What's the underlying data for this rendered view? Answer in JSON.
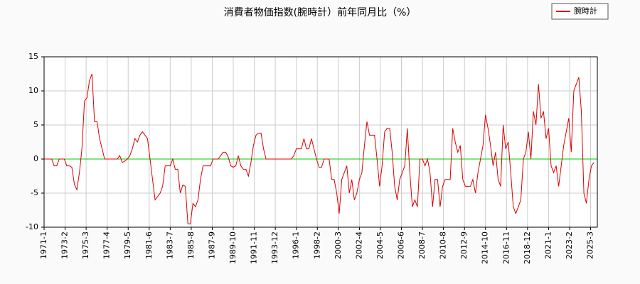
{
  "chart_data": {
    "type": "line",
    "title": "消費者物価指数(腕時計）前年同月比（%）",
    "xlim": [
      "1971-1",
      "2025-11"
    ],
    "xticks": [
      "1971-1",
      "1973-2",
      "1975-3",
      "1977-4",
      "1979-5",
      "1981-6",
      "1983-7",
      "1985-8",
      "1987-9",
      "1989-10",
      "1991-11",
      "1993-12",
      "1996-1",
      "1998-2",
      "2000-3",
      "2002-4",
      "2004-5",
      "2006-6",
      "2008-7",
      "2010-8",
      "2012-9",
      "2014-10",
      "2016-11",
      "2018-12",
      "2021-1",
      "2023-2",
      "2025-3"
    ],
    "ylim": [
      -10,
      15
    ],
    "yticks": [
      -10,
      -5,
      0,
      5,
      10,
      15
    ],
    "grid": true,
    "hline": 0,
    "hline_color": "#00cc00",
    "legend": "upper right",
    "x": [
      "1971-1",
      "1971-4",
      "1971-7",
      "1971-10",
      "1972-1",
      "1972-4",
      "1972-7",
      "1972-10",
      "1973-1",
      "1973-4",
      "1973-7",
      "1973-10",
      "1974-1",
      "1974-4",
      "1974-7",
      "1974-10",
      "1975-1",
      "1975-4",
      "1975-7",
      "1975-10",
      "1976-1",
      "1976-4",
      "1976-7",
      "1976-10",
      "1977-1",
      "1977-4",
      "1977-7",
      "1977-10",
      "1978-1",
      "1978-4",
      "1978-7",
      "1978-10",
      "1979-1",
      "1979-4",
      "1979-7",
      "1979-10",
      "1980-1",
      "1980-4",
      "1980-7",
      "1980-10",
      "1981-1",
      "1981-4",
      "1981-7",
      "1981-10",
      "1982-1",
      "1982-4",
      "1982-7",
      "1982-10",
      "1983-1",
      "1983-4",
      "1983-7",
      "1983-10",
      "1984-1",
      "1984-4",
      "1984-7",
      "1984-10",
      "1985-1",
      "1985-4",
      "1985-7",
      "1985-10",
      "1986-1",
      "1986-4",
      "1986-7",
      "1986-10",
      "1987-1",
      "1987-4",
      "1987-7",
      "1987-10",
      "1988-1",
      "1988-4",
      "1988-7",
      "1988-10",
      "1989-1",
      "1989-4",
      "1989-7",
      "1989-10",
      "1990-1",
      "1990-4",
      "1990-7",
      "1990-10",
      "1991-1",
      "1991-4",
      "1991-7",
      "1991-10",
      "1992-1",
      "1992-4",
      "1992-7",
      "1992-10",
      "1993-1",
      "1993-4",
      "1993-7",
      "1993-10",
      "1994-1",
      "1994-4",
      "1994-7",
      "1994-10",
      "1995-1",
      "1995-4",
      "1995-7",
      "1995-10",
      "1996-1",
      "1996-4",
      "1996-7",
      "1996-10",
      "1997-1",
      "1997-4",
      "1997-7",
      "1997-10",
      "1998-1",
      "1998-4",
      "1998-7",
      "1998-10",
      "1999-1",
      "1999-4",
      "1999-7",
      "1999-10",
      "2000-1",
      "2000-4",
      "2000-7",
      "2000-10",
      "2001-1",
      "2001-4",
      "2001-7",
      "2001-10",
      "2002-1",
      "2002-4",
      "2002-7",
      "2002-10",
      "2003-1",
      "2003-4",
      "2003-7",
      "2003-10",
      "2004-1",
      "2004-4",
      "2004-7",
      "2004-10",
      "2005-1",
      "2005-4",
      "2005-7",
      "2005-10",
      "2006-1",
      "2006-4",
      "2006-7",
      "2006-10",
      "2007-1",
      "2007-4",
      "2007-7",
      "2007-10",
      "2008-1",
      "2008-4",
      "2008-7",
      "2008-10",
      "2009-1",
      "2009-4",
      "2009-7",
      "2009-10",
      "2010-1",
      "2010-4",
      "2010-7",
      "2010-10",
      "2011-1",
      "2011-4",
      "2011-7",
      "2011-10",
      "2012-1",
      "2012-4",
      "2012-7",
      "2012-10",
      "2013-1",
      "2013-4",
      "2013-7",
      "2013-10",
      "2014-1",
      "2014-4",
      "2014-7",
      "2014-10",
      "2015-1",
      "2015-4",
      "2015-7",
      "2015-10",
      "2016-1",
      "2016-4",
      "2016-7",
      "2016-10",
      "2017-1",
      "2017-4",
      "2017-7",
      "2017-10",
      "2018-1",
      "2018-4",
      "2018-7",
      "2018-10",
      "2019-1",
      "2019-4",
      "2019-7",
      "2019-10",
      "2020-1",
      "2020-4",
      "2020-7",
      "2020-10",
      "2021-1",
      "2021-4",
      "2021-7",
      "2021-10",
      "2022-1",
      "2022-4",
      "2022-7",
      "2022-10",
      "2023-1",
      "2023-4",
      "2023-7",
      "2023-10",
      "2024-1",
      "2024-4",
      "2024-7",
      "2024-10",
      "2025-1",
      "2025-4",
      "2025-7"
    ],
    "series": [
      {
        "name": "腕時計",
        "color": "#dd0000",
        "values": [
          0,
          0,
          0,
          0,
          -1,
          -1,
          0,
          0,
          0,
          -1,
          -1,
          -1.2,
          -3.7,
          -4.5,
          -2,
          1.5,
          8.5,
          9,
          11.5,
          12.5,
          5.5,
          5.5,
          3,
          1.5,
          0,
          0,
          0,
          0,
          0,
          0,
          0.5,
          -0.5,
          -0.3,
          0,
          0.5,
          1.5,
          3,
          2.5,
          3.5,
          4,
          3.5,
          3,
          0,
          -3,
          -6,
          -5.5,
          -5,
          -4,
          -1,
          -1,
          -1,
          0,
          -1.5,
          -1.5,
          -5,
          -3.8,
          -4,
          -9.5,
          -9.5,
          -6.5,
          -7,
          -6,
          -3,
          -1,
          -1,
          -1,
          -1,
          0,
          0,
          0,
          0.5,
          1,
          1,
          0.3,
          -1,
          -1.2,
          -1,
          0.5,
          -1,
          -1.5,
          -1.5,
          -2.5,
          -0.5,
          2,
          3.5,
          3.8,
          3.8,
          1.5,
          0,
          0,
          0,
          0,
          0,
          0,
          0,
          0,
          0,
          0,
          0,
          0.5,
          1.5,
          1.5,
          1.5,
          3,
          1.5,
          1.5,
          3,
          1.5,
          0,
          -1.2,
          -1.2,
          0,
          0,
          0,
          -3,
          -3,
          -5,
          -8,
          -3,
          -2,
          -1,
          -5,
          -3,
          -6,
          -5,
          -3,
          -2,
          2,
          5.5,
          3.5,
          3.5,
          3.5,
          0,
          -4,
          -1,
          4,
          4.5,
          4.5,
          1,
          -4,
          -6,
          -3,
          -2,
          -1,
          4.5,
          -2,
          -7,
          -6,
          -7,
          0,
          0,
          -1,
          0,
          -2,
          -7,
          -3,
          -3,
          -7,
          -4,
          -3,
          -3,
          -3,
          4.5,
          2.5,
          1,
          2,
          -3,
          -4,
          -4,
          -4,
          -3,
          -5,
          -2,
          0,
          2,
          6.5,
          4.5,
          2,
          -1,
          1,
          -3,
          -4,
          5,
          1.5,
          2.5,
          -2,
          -7,
          -8,
          -7,
          -6,
          0,
          1,
          4,
          0,
          7,
          5,
          11,
          6,
          7,
          3,
          4.5,
          -1,
          -2,
          -1,
          -4,
          -1,
          2,
          4,
          6,
          1,
          10,
          11,
          12,
          7,
          -5,
          -6.5,
          -3,
          -1,
          -0.5
        ]
      }
    ]
  }
}
